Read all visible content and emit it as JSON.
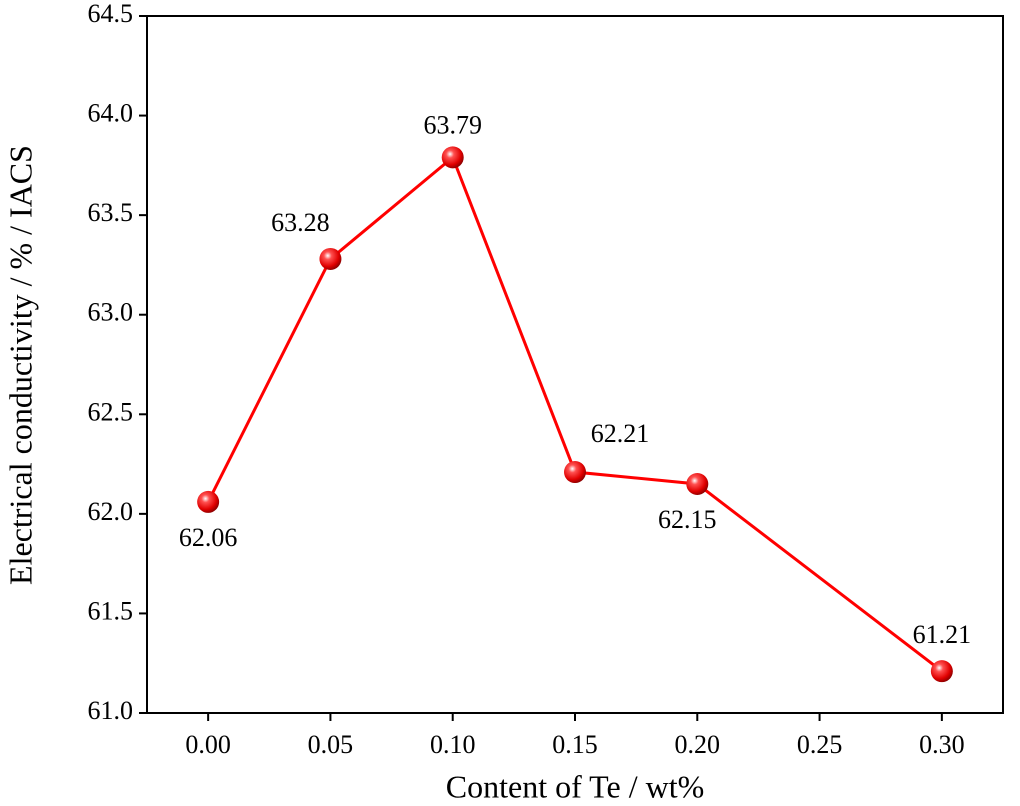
{
  "chart_data": {
    "type": "line",
    "x_label": "Content of Te / wt%",
    "y_label": "Electrical conductivity / % / IACS",
    "x": [
      0,
      0.05,
      0.1,
      0.15,
      0.2,
      0.3
    ],
    "series": [
      {
        "color": "#ff0000",
        "values": [
          62.06,
          63.28,
          63.79,
          62.21,
          62.15,
          61.21
        ]
      }
    ],
    "xlim": [
      -0.025,
      0.325
    ],
    "ylim": [
      61.0,
      64.5
    ],
    "xticks": [
      {
        "value": 0,
        "label": "0.00"
      },
      {
        "value": 0.05,
        "label": "0.05"
      },
      {
        "value": 0.1,
        "label": "0.10"
      },
      {
        "value": 0.15,
        "label": "0.15"
      },
      {
        "value": 0.2,
        "label": "0.20"
      },
      {
        "value": 0.25,
        "label": "0.25"
      },
      {
        "value": 0.3,
        "label": "0.30"
      }
    ],
    "yticks": [
      {
        "value": 61,
        "label": "61.0"
      },
      61.5,
      {
        "value": 62,
        "label": "62.0"
      },
      62.5,
      {
        "value": 63,
        "label": "63.0"
      },
      63.5,
      {
        "value": 64,
        "label": "64.0"
      },
      64.5
    ]
  }
}
